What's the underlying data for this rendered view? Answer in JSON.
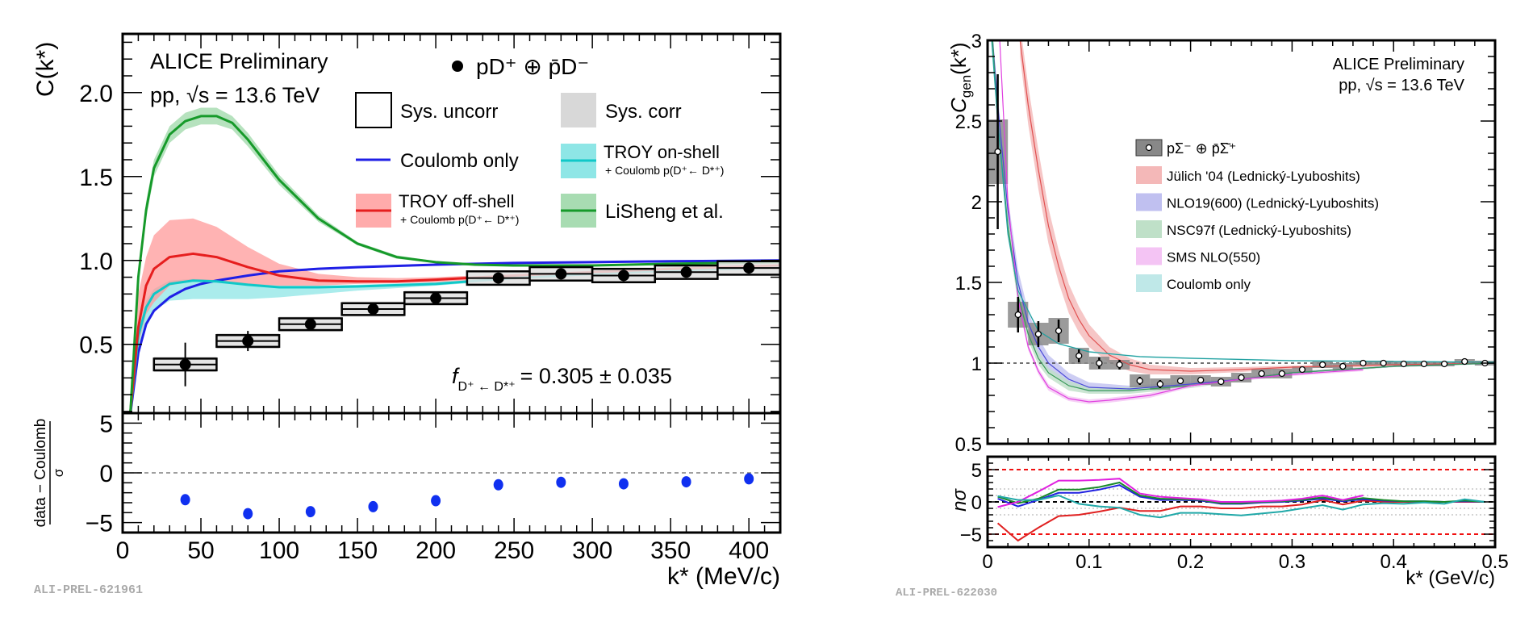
{
  "chart_data": [
    {
      "type": "scatter",
      "experiment_label": "ALICE Preliminary",
      "system_label": "pp, √s = 13.6 TeV",
      "data_label": "pD⁺ ⊕ p̄D⁻",
      "ylabel": "C(k*)",
      "xlabel": "k* (MeV/c)",
      "xlim": [
        0,
        420
      ],
      "ylim": [
        0.09,
        2.35
      ],
      "xticks": [
        0,
        50,
        100,
        150,
        200,
        250,
        300,
        350,
        400
      ],
      "xtick_labels": [
        "0",
        "50",
        "100",
        "150",
        "200",
        "250",
        "300",
        "350",
        "400"
      ],
      "yticks": [
        0.5,
        1.0,
        1.5,
        2.0
      ],
      "ytick_labels": [
        "0.5",
        "1.0",
        "1.5",
        "2.0"
      ],
      "annotation": {
        "f": "f",
        "subscript": "D⁺ ← D*⁺",
        "value": "= 0.305 ± 0.035"
      },
      "watermark": "ALI-PREL-621961",
      "legend": {
        "sys_uncorr": "Sys. uncorr",
        "sys_corr": "Sys. corr",
        "coulomb": "Coulomb only",
        "troy_on": "TROY on-shell",
        "troy_on_sub": "+ Coulomb p(D⁺← D*⁺)",
        "troy_off": "TROY off-shell",
        "troy_off_sub": "+ Coulomb p(D⁺← D*⁺)",
        "lisheng": "LiSheng et al."
      },
      "data": {
        "x": [
          40,
          80,
          120,
          160,
          200,
          240,
          280,
          320,
          360,
          400
        ],
        "y": [
          0.38,
          0.52,
          0.62,
          0.71,
          0.775,
          0.895,
          0.92,
          0.91,
          0.93,
          0.955
        ],
        "stat_err": [
          0.13,
          0.06,
          0.03,
          0.025,
          0.025,
          0.025,
          0.02,
          0.02,
          0.02,
          0.02
        ],
        "bin_halfwidth": 20,
        "sys_uncorr": [
          0.035,
          0.035,
          0.035,
          0.035,
          0.035,
          0.04,
          0.04,
          0.04,
          0.04,
          0.04
        ],
        "sys_corr": [
          0.045,
          0.045,
          0.045,
          0.045,
          0.045,
          0.045,
          0.045,
          0.045,
          0.045,
          0.045
        ]
      },
      "models": [
        {
          "name": "Coulomb only",
          "color": "#1f1fe6",
          "band_color": null,
          "x": [
            5,
            10,
            15,
            20,
            30,
            40,
            50,
            60,
            80,
            100,
            125,
            150,
            200,
            250,
            300,
            350,
            420
          ],
          "y": [
            0.09,
            0.45,
            0.62,
            0.7,
            0.78,
            0.83,
            0.86,
            0.88,
            0.91,
            0.935,
            0.95,
            0.96,
            0.975,
            0.985,
            0.99,
            0.995,
            1.0
          ]
        },
        {
          "name": "TROY on-shell",
          "color": "#10c8c8",
          "band_color": "#8ee6e6",
          "x": [
            5,
            10,
            15,
            20,
            30,
            45,
            60,
            80,
            100,
            125,
            150,
            200,
            250,
            300,
            350,
            420
          ],
          "y": [
            0.1,
            0.55,
            0.72,
            0.8,
            0.86,
            0.88,
            0.875,
            0.855,
            0.84,
            0.84,
            0.845,
            0.86,
            0.895,
            0.92,
            0.94,
            0.96
          ],
          "lo": [
            0.09,
            0.45,
            0.62,
            0.7,
            0.76,
            0.77,
            0.77,
            0.77,
            0.78,
            0.8,
            0.82,
            0.85,
            0.885,
            0.91,
            0.93,
            0.95
          ],
          "hi": [
            0.11,
            0.6,
            0.76,
            0.83,
            0.88,
            0.89,
            0.885,
            0.865,
            0.85,
            0.85,
            0.855,
            0.87,
            0.9,
            0.925,
            0.945,
            0.965
          ]
        },
        {
          "name": "TROY off-shell",
          "color": "#e61e1e",
          "band_color": "#ff9a9a",
          "x": [
            5,
            10,
            15,
            20,
            30,
            45,
            60,
            80,
            100,
            125,
            150,
            175,
            200,
            250,
            300,
            350,
            420
          ],
          "y": [
            0.1,
            0.6,
            0.85,
            0.95,
            1.02,
            1.04,
            1.02,
            0.96,
            0.91,
            0.88,
            0.875,
            0.875,
            0.885,
            0.91,
            0.93,
            0.95,
            0.97
          ],
          "lo": [
            0.08,
            0.5,
            0.68,
            0.75,
            0.85,
            0.88,
            0.87,
            0.86,
            0.85,
            0.85,
            0.86,
            0.865,
            0.87,
            0.9,
            0.92,
            0.94,
            0.96
          ],
          "hi": [
            0.12,
            0.8,
            1.02,
            1.15,
            1.24,
            1.25,
            1.2,
            1.08,
            0.98,
            0.92,
            0.9,
            0.895,
            0.9,
            0.92,
            0.94,
            0.96,
            0.98
          ]
        },
        {
          "name": "LiSheng et al.",
          "color": "#169a2a",
          "band_color": "#9ed8a8",
          "x": [
            5,
            10,
            15,
            20,
            30,
            40,
            50,
            60,
            70,
            80,
            100,
            125,
            150,
            175,
            200,
            225,
            250,
            300,
            350,
            420
          ],
          "y": [
            0.1,
            0.9,
            1.3,
            1.55,
            1.75,
            1.83,
            1.86,
            1.86,
            1.82,
            1.72,
            1.48,
            1.25,
            1.1,
            1.02,
            0.99,
            0.975,
            0.97,
            0.97,
            0.98,
            0.99
          ],
          "lo": [
            0.09,
            0.86,
            1.25,
            1.5,
            1.7,
            1.78,
            1.81,
            1.81,
            1.78,
            1.68,
            1.45,
            1.23,
            1.09,
            1.01,
            0.985,
            0.97,
            0.965,
            0.965,
            0.975,
            0.985
          ],
          "hi": [
            0.11,
            0.94,
            1.35,
            1.6,
            1.8,
            1.88,
            1.91,
            1.91,
            1.86,
            1.76,
            1.51,
            1.27,
            1.11,
            1.03,
            0.995,
            0.98,
            0.975,
            0.975,
            0.985,
            0.995
          ]
        }
      ],
      "residual": {
        "ylabel_num": "data − Coulomb",
        "ylabel_den": "σ",
        "ylim": [
          -6,
          6
        ],
        "yticks": [
          -5,
          0,
          5
        ],
        "ytick_labels": [
          "−5",
          "0",
          "5"
        ],
        "color": "#1030f0",
        "x": [
          40,
          80,
          120,
          160,
          200,
          240,
          280,
          320,
          360,
          400
        ],
        "y": [
          -2.7,
          -4.1,
          -3.9,
          -3.4,
          -2.8,
          -1.2,
          -0.95,
          -1.1,
          -0.9,
          -0.6
        ]
      }
    },
    {
      "type": "scatter",
      "experiment_label": "ALICE Preliminary",
      "system_label": "pp, √s = 13.6 TeV",
      "ylabel_main": "C",
      "ylabel_sub": "gen",
      "ylabel_tail": "(k*)",
      "xlabel": "k* (GeV/c)",
      "xlim": [
        0,
        0.5
      ],
      "ylim": [
        0.5,
        3
      ],
      "xticks": [
        0,
        0.1,
        0.2,
        0.3,
        0.4,
        0.5
      ],
      "xtick_labels": [
        "0",
        "0.1",
        "0.2",
        "0.3",
        "0.4",
        "0.5"
      ],
      "yticks": [
        0.5,
        1,
        1.5,
        2,
        2.5,
        3
      ],
      "ytick_labels": [
        "0.5",
        "1",
        "1.5",
        "2",
        "2.5",
        "3"
      ],
      "watermark": "ALI-PREL-622030",
      "legend": {
        "data": "pΣ⁻ ⊕ p̄Σ̄⁺",
        "items": [
          "Jülich '04 (Lednický-Lyuboshits)",
          "NLO19(600) (Lednický-Lyuboshits)",
          "NSC97f (Lednický-Lyuboshits)",
          "SMS NLO(550)",
          "Coulomb only"
        ]
      },
      "data": {
        "x": [
          0.01,
          0.03,
          0.05,
          0.07,
          0.09,
          0.11,
          0.13,
          0.15,
          0.17,
          0.19,
          0.21,
          0.23,
          0.25,
          0.27,
          0.29,
          0.31,
          0.33,
          0.35,
          0.37,
          0.39,
          0.41,
          0.43,
          0.45,
          0.47,
          0.49
        ],
        "y": [
          2.31,
          1.3,
          1.18,
          1.2,
          1.045,
          1.0,
          0.99,
          0.89,
          0.87,
          0.89,
          0.895,
          0.885,
          0.91,
          0.935,
          0.935,
          0.96,
          0.99,
          0.98,
          1.0,
          1.0,
          0.995,
          0.995,
          0.995,
          1.01,
          1.0
        ],
        "stat_err": [
          0.48,
          0.11,
          0.08,
          0.07,
          0.04,
          0.035,
          0.03,
          0.025,
          0.025,
          0.02,
          0.02,
          0.02,
          0.015,
          0.012,
          0.012,
          0.012,
          0.01,
          0.01,
          0.01,
          0.01,
          0.008,
          0.008,
          0.008,
          0.008,
          0.008
        ],
        "sys_err": [
          0.2,
          0.08,
          0.07,
          0.08,
          0.05,
          0.04,
          0.03,
          0.04,
          0.035,
          0.035,
          0.03,
          0.03,
          0.03,
          0.03,
          0.03,
          0.02,
          0.02,
          0.02,
          0.015,
          0.015,
          0.015,
          0.015,
          0.015,
          0.015,
          0.015
        ],
        "bin_halfwidth": 0.01
      },
      "models": [
        {
          "name": "Jülich '04 (Lednický-Lyuboshits)",
          "color": "#e05050",
          "band_color": "#f4b8b8",
          "x": [
            0.032,
            0.04,
            0.05,
            0.06,
            0.07,
            0.08,
            0.09,
            0.1,
            0.12,
            0.14,
            0.16,
            0.2,
            0.25,
            0.3,
            0.4,
            0.5
          ],
          "y": [
            3.0,
            2.6,
            2.2,
            1.85,
            1.6,
            1.4,
            1.27,
            1.17,
            1.05,
            0.99,
            0.96,
            0.95,
            0.96,
            0.975,
            0.99,
            1.0
          ],
          "err": [
            0.1,
            0.12,
            0.12,
            0.11,
            0.1,
            0.09,
            0.08,
            0.07,
            0.05,
            0.04,
            0.03,
            0.02,
            0.015,
            0.01,
            0.01,
            0.005
          ]
        },
        {
          "name": "NLO19(600) (Lednický-Lyuboshits)",
          "color": "#4a4ad8",
          "band_color": "#c0c0f0",
          "x": [
            0.005,
            0.01,
            0.02,
            0.03,
            0.04,
            0.05,
            0.06,
            0.08,
            0.1,
            0.14,
            0.2,
            0.25,
            0.3,
            0.4,
            0.5
          ],
          "y": [
            3.0,
            2.6,
            1.95,
            1.5,
            1.25,
            1.1,
            1.0,
            0.9,
            0.85,
            0.84,
            0.87,
            0.9,
            0.94,
            0.98,
            1.0
          ],
          "err": [
            0.05,
            0.06,
            0.08,
            0.08,
            0.07,
            0.06,
            0.05,
            0.04,
            0.03,
            0.02,
            0.015,
            0.01,
            0.01,
            0.005,
            0.005
          ]
        },
        {
          "name": "NSC97f (Lednický-Lyuboshits)",
          "color": "#3a9a5a",
          "band_color": "#bfe0c8",
          "x": [
            0.005,
            0.01,
            0.02,
            0.03,
            0.04,
            0.05,
            0.06,
            0.08,
            0.1,
            0.14,
            0.2,
            0.25,
            0.3,
            0.4,
            0.5
          ],
          "y": [
            3.0,
            2.5,
            1.85,
            1.42,
            1.18,
            1.03,
            0.94,
            0.86,
            0.83,
            0.83,
            0.86,
            0.9,
            0.94,
            0.98,
            1.0
          ],
          "err": [
            0.04,
            0.05,
            0.06,
            0.05,
            0.04,
            0.04,
            0.03,
            0.03,
            0.02,
            0.02,
            0.015,
            0.01,
            0.01,
            0.005,
            0.005
          ]
        },
        {
          "name": "SMS NLO(550)",
          "color": "#e040e0",
          "band_color": "#f4c4f4",
          "x": [
            0.012,
            0.02,
            0.03,
            0.04,
            0.05,
            0.06,
            0.08,
            0.1,
            0.12,
            0.16,
            0.2,
            0.25,
            0.3,
            0.37
          ],
          "y": [
            3.0,
            2.0,
            1.4,
            1.1,
            0.95,
            0.85,
            0.78,
            0.76,
            0.77,
            0.8,
            0.86,
            0.9,
            0.93,
            0.96
          ],
          "err": [
            0.03,
            0.03,
            0.03,
            0.02,
            0.02,
            0.02,
            0.015,
            0.015,
            0.015,
            0.015,
            0.01,
            0.01,
            0.01,
            0.01
          ]
        },
        {
          "name": "Coulomb only",
          "color": "#20a0a0",
          "band_color": "#bfe8e8",
          "x": [
            0.004,
            0.01,
            0.02,
            0.03,
            0.05,
            0.07,
            0.1,
            0.15,
            0.2,
            0.3,
            0.4,
            0.5
          ],
          "y": [
            3.0,
            2.5,
            1.8,
            1.45,
            1.2,
            1.12,
            1.07,
            1.04,
            1.03,
            1.015,
            1.01,
            1.005
          ],
          "err": [
            0.01,
            0.01,
            0.01,
            0.01,
            0.01,
            0.005,
            0.005,
            0.005,
            0.005,
            0.005,
            0.005,
            0.005
          ]
        }
      ],
      "residual": {
        "ylabel": "nσ",
        "ylim": [
          -7,
          7
        ],
        "yticks": [
          -5,
          0,
          5
        ],
        "ytick_labels": [
          "−5",
          "0",
          "5"
        ],
        "x": [
          0.01,
          0.03,
          0.05,
          0.07,
          0.09,
          0.11,
          0.13,
          0.15,
          0.17,
          0.19,
          0.21,
          0.23,
          0.25,
          0.27,
          0.29,
          0.31,
          0.33,
          0.35,
          0.37,
          0.39,
          0.41,
          0.43,
          0.45,
          0.47,
          0.49
        ],
        "series": [
          {
            "color": "#e02020",
            "y": [
              -3.3,
              -6.0,
              -4.0,
              -2.2,
              -2.0,
              -1.5,
              -0.9,
              -1.4,
              -1.4,
              -0.7,
              -0.7,
              -1.0,
              -1.0,
              -0.7,
              -0.7,
              -0.4,
              0.3,
              -0.4,
              0.2,
              0.0,
              0.0,
              0.0,
              0.0,
              0.0,
              0.0
            ]
          },
          {
            "color": "#2020e0",
            "y": [
              0.5,
              -0.7,
              0.3,
              1.4,
              1.4,
              1.9,
              2.6,
              0.8,
              0.3,
              0.3,
              0.2,
              -0.3,
              -0.3,
              -0.1,
              0.0,
              0.2,
              0.5,
              0.1,
              0.4,
              0.2,
              0.1,
              0.1,
              0.0,
              0.1,
              0.0
            ]
          },
          {
            "color": "#1a8a2a",
            "y": [
              0.8,
              -0.2,
              0.5,
              1.9,
              1.9,
              2.3,
              3.0,
              1.0,
              0.5,
              0.4,
              0.3,
              -0.2,
              -0.2,
              0.0,
              0.1,
              0.3,
              0.7,
              0.2,
              0.6,
              0.3,
              0.1,
              0.1,
              0.0,
              0.2,
              0.0
            ]
          },
          {
            "color": "#e020e0",
            "y": [
              -0.8,
              0.0,
              1.6,
              3.3,
              3.3,
              3.4,
              3.6,
              1.3,
              0.8,
              0.6,
              0.4,
              0.0,
              0.0,
              0.1,
              0.2,
              0.5,
              1.0,
              0.3,
              1.0
            ]
          },
          {
            "color": "#20a8a8",
            "y": [
              0.9,
              0.3,
              0.3,
              1.0,
              -0.3,
              -0.7,
              -0.9,
              -2.0,
              -2.4,
              -1.7,
              -1.7,
              -1.9,
              -2.1,
              -1.8,
              -1.5,
              -1.0,
              -0.5,
              -1.2,
              -0.4,
              -0.2,
              -0.3,
              -0.1,
              -0.3,
              0.4,
              0.0
            ]
          }
        ],
        "ref_lines": {
          "red_dashed": [
            -5,
            5
          ],
          "gray_dotted": [
            -2,
            -1,
            1,
            2
          ],
          "black_dashed": [
            0
          ]
        }
      }
    }
  ]
}
